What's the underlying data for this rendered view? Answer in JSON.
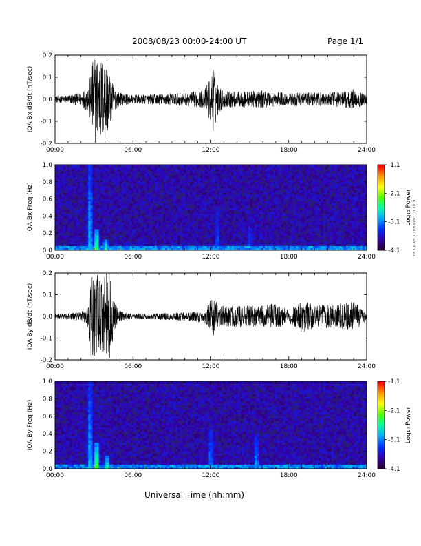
{
  "header": {
    "date_range": "2008/08/23  00:00-24:00 UT",
    "page": "Page 1/1"
  },
  "footer": {
    "x_title": "Universal Time (hh:mm)",
    "side_note": "src 1.0 Apr 1 10:59:09 CDT 2019"
  },
  "colors": {
    "trace": "#000000",
    "spectrogram_background": "#2a1a7a",
    "colorbar": [
      "#2a0035",
      "#3300aa",
      "#0033ff",
      "#00aaff",
      "#00ffaa",
      "#55ff00",
      "#ffff00",
      "#ff9900",
      "#ff0000"
    ]
  },
  "chart_data": [
    {
      "id": "bx_dbdt",
      "type": "line",
      "xlabel": "",
      "ylabel": "IQA Bx dB/dt (nT/sec)",
      "xlim": [
        0,
        24
      ],
      "ylim": [
        -0.2,
        0.2
      ],
      "x_ticks": [
        "00:00",
        "06:00",
        "12:00",
        "18:00",
        "24:00"
      ],
      "y_ticks": [
        "-0.2",
        "-0.1",
        "0.0",
        "0.1",
        "0.2"
      ],
      "envelope": {
        "x": [
          0,
          1,
          2,
          2.5,
          2.8,
          3.0,
          3.3,
          3.6,
          3.9,
          4.2,
          4.6,
          5,
          6,
          8,
          10,
          11.5,
          12.2,
          12.6,
          13,
          14,
          16,
          17,
          18,
          20,
          22,
          23,
          24
        ],
        "amplitude": [
          0.015,
          0.02,
          0.03,
          0.06,
          0.14,
          0.2,
          0.2,
          0.18,
          0.2,
          0.12,
          0.05,
          0.03,
          0.02,
          0.025,
          0.03,
          0.04,
          0.15,
          0.06,
          0.04,
          0.035,
          0.04,
          0.035,
          0.03,
          0.03,
          0.035,
          0.045,
          0.02
        ]
      }
    },
    {
      "id": "bx_spectrogram",
      "type": "heatmap",
      "xlabel": "",
      "ylabel": "IQA Bx Freq (Hz)",
      "xlim": [
        0,
        24
      ],
      "ylim": [
        0.0,
        1.0
      ],
      "x_ticks": [
        "00:00",
        "06:00",
        "12:00",
        "18:00",
        "24:00"
      ],
      "y_ticks": [
        "0.0",
        "0.2",
        "0.4",
        "0.6",
        "0.8",
        "1.0"
      ],
      "colorbar": {
        "label": "Log₁₀ Power",
        "range": [
          -4.1,
          -1.1
        ],
        "ticks": [
          "-1.1",
          "-2.1",
          "-3.1",
          "-4.1"
        ]
      },
      "features": [
        {
          "t": 2.7,
          "f_max": 1.0,
          "log_power": -2.8
        },
        {
          "t": 3.2,
          "f_max": 0.25,
          "log_power": -2.0
        },
        {
          "t": 3.9,
          "f_max": 0.12,
          "log_power": -2.4
        },
        {
          "t": 12.5,
          "f_max": 0.5,
          "log_power": -3.2
        },
        {
          "t": 15.0,
          "f_max": 0.4,
          "log_power": -3.3
        }
      ]
    },
    {
      "id": "by_dbdt",
      "type": "line",
      "xlabel": "",
      "ylabel": "IQA By dB/dt (nT/sec)",
      "xlim": [
        0,
        24
      ],
      "ylim": [
        -0.2,
        0.2
      ],
      "x_ticks": [
        "00:00",
        "06:00",
        "12:00",
        "18:00",
        "24:00"
      ],
      "y_ticks": [
        "-0.2",
        "-0.1",
        "0.0",
        "0.1",
        "0.2"
      ],
      "envelope": {
        "x": [
          0,
          1,
          2,
          2.5,
          2.8,
          3.0,
          3.3,
          3.6,
          3.9,
          4.2,
          4.6,
          5,
          6,
          8,
          10,
          11.5,
          12.2,
          12.6,
          13,
          14,
          16,
          17,
          18,
          19,
          20,
          22,
          23,
          24
        ],
        "amplitude": [
          0.01,
          0.015,
          0.02,
          0.05,
          0.2,
          0.2,
          0.2,
          0.15,
          0.2,
          0.2,
          0.06,
          0.025,
          0.01,
          0.015,
          0.02,
          0.03,
          0.09,
          0.05,
          0.05,
          0.05,
          0.05,
          0.06,
          0.03,
          0.08,
          0.05,
          0.06,
          0.07,
          0.02
        ]
      }
    },
    {
      "id": "by_spectrogram",
      "type": "heatmap",
      "xlabel": "",
      "ylabel": "IQA By Freq (Hz)",
      "xlim": [
        0,
        24
      ],
      "ylim": [
        0.0,
        1.0
      ],
      "x_ticks": [
        "00:00",
        "06:00",
        "12:00",
        "18:00",
        "24:00"
      ],
      "y_ticks": [
        "0.0",
        "0.2",
        "0.4",
        "0.6",
        "0.8",
        "1.0"
      ],
      "colorbar": {
        "label": "Log₁₀ Power",
        "range": [
          -4.1,
          -1.1
        ],
        "ticks": [
          "-1.1",
          "-2.1",
          "-3.1",
          "-4.1"
        ]
      },
      "features": [
        {
          "t": 2.7,
          "f_max": 1.0,
          "log_power": -2.8
        },
        {
          "t": 3.2,
          "f_max": 0.3,
          "log_power": -2.0
        },
        {
          "t": 4.0,
          "f_max": 0.15,
          "log_power": -2.3
        },
        {
          "t": 12.0,
          "f_max": 0.45,
          "log_power": -3.0
        },
        {
          "t": 15.5,
          "f_max": 0.4,
          "log_power": -3.0
        }
      ]
    }
  ]
}
